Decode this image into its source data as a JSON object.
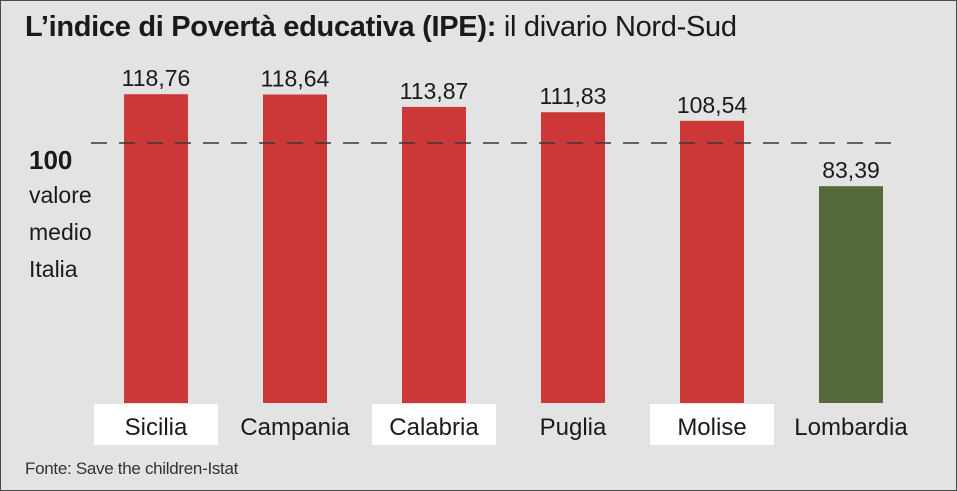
{
  "title": {
    "main": "L’indice di Povertà educativa (IPE):",
    "sub": "il divario Nord-Sud"
  },
  "reference": {
    "value": "100",
    "label": "valore\nmedio\nItalia"
  },
  "source": "Fonte: Save the children-Istat",
  "colors": {
    "south_bar": "#cc3737",
    "north_bar": "#56693a",
    "background": "#e3e3e3",
    "label_box": "#ffffff"
  },
  "chart_data": {
    "type": "bar",
    "categories": [
      "Sicilia",
      "Campania",
      "Calabria",
      "Puglia",
      "Molise",
      "Lombardia"
    ],
    "values": [
      118.76,
      118.64,
      113.87,
      111.83,
      108.54,
      83.39
    ],
    "value_labels": [
      "118,76",
      "118,64",
      "113,87",
      "111,83",
      "108,54",
      "83,39"
    ],
    "bar_colors": [
      "#cc3737",
      "#cc3737",
      "#cc3737",
      "#cc3737",
      "#cc3737",
      "#56693a"
    ],
    "reference_line": 100,
    "title": "L’indice di Povertà educativa (IPE): il divario Nord-Sud",
    "xlabel": "",
    "ylabel": "",
    "grid": false
  }
}
